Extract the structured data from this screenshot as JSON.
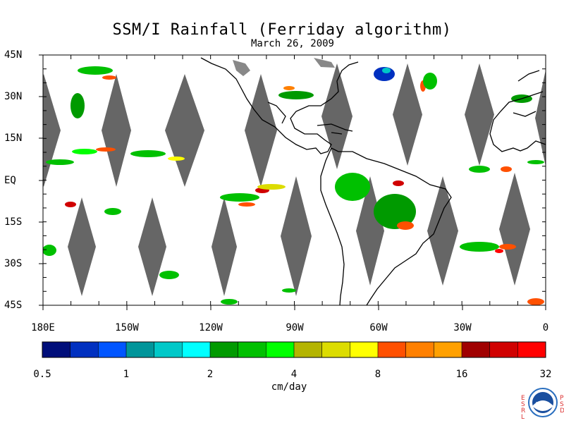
{
  "title": "SSM/I Rainfall (Ferriday algorithm)",
  "date": "March 26, 2009",
  "lat_labels": [
    "45N",
    "30N",
    "15N",
    "EQ",
    "15S",
    "30S",
    "45S"
  ],
  "lon_labels": [
    "180E",
    "150W",
    "120W",
    "90W",
    "60W",
    "30W",
    "0"
  ],
  "colorbar": {
    "tick_labels": [
      "0.5",
      "1",
      "2",
      "4",
      "8",
      "16",
      "32"
    ],
    "unit": "cm/day",
    "colors": [
      "#000e7a",
      "#0030c0",
      "#0055ff",
      "#00959a",
      "#00c8c8",
      "#00ffff",
      "#009a00",
      "#00c000",
      "#00ff00",
      "#b4b400",
      "#dcdc00",
      "#ffff00",
      "#ff5000",
      "#ff8000",
      "#ffa000",
      "#a00000",
      "#d00000",
      "#ff0000"
    ]
  },
  "map": {
    "gap_color": "#666666",
    "coast_color": "#000000"
  },
  "logo": {
    "left_letters": "ESRL",
    "right_letters": "PSD"
  }
}
